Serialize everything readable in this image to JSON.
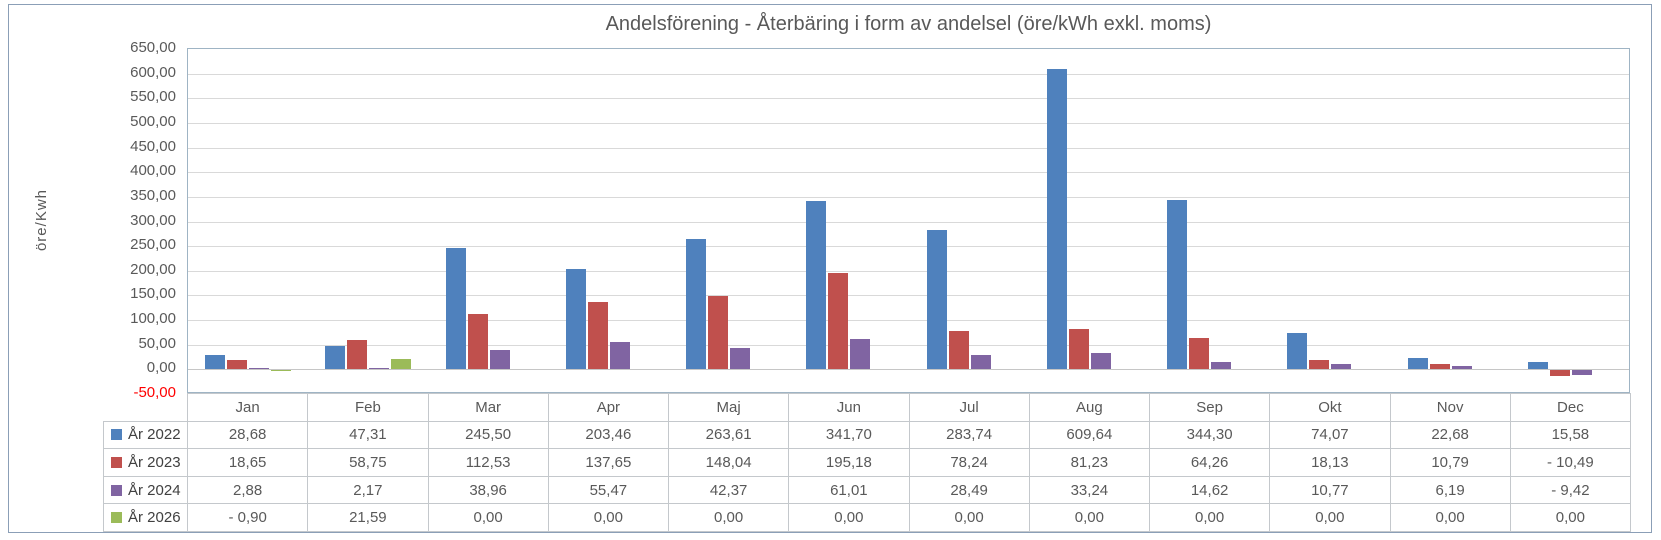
{
  "chart_data": {
    "type": "bar",
    "title": "Andelsförening - Återbäring i form av andelsel (öre/kWh exkl. moms)",
    "ylabel": "öre/Kwh",
    "xlabel": "",
    "ylim": [
      -50,
      650
    ],
    "ytick_step": 50,
    "yticks": [
      "650,00",
      "600,00",
      "550,00",
      "500,00",
      "450,00",
      "400,00",
      "350,00",
      "300,00",
      "250,00",
      "200,00",
      "150,00",
      "100,00",
      "50,00",
      "0,00",
      "-50,00"
    ],
    "negative_tick_color": "#ff0000",
    "grid": true,
    "legend_position": "table-left",
    "categories": [
      "Jan",
      "Feb",
      "Mar",
      "Apr",
      "Maj",
      "Jun",
      "Jul",
      "Aug",
      "Sep",
      "Okt",
      "Nov",
      "Dec"
    ],
    "series": [
      {
        "name": "År 2022",
        "color": "#4F81BD",
        "values": [
          28.68,
          47.31,
          245.5,
          203.46,
          263.61,
          341.7,
          283.74,
          609.64,
          344.3,
          74.07,
          22.68,
          15.58
        ],
        "display": [
          "28,68",
          "47,31",
          "245,50",
          "203,46",
          "263,61",
          "341,70",
          "283,74",
          "609,64",
          "344,30",
          "74,07",
          "22,68",
          "15,58"
        ]
      },
      {
        "name": "År 2023",
        "color": "#C0504D",
        "values": [
          18.65,
          58.75,
          112.53,
          137.65,
          148.04,
          195.18,
          78.24,
          81.23,
          64.26,
          18.13,
          10.79,
          -10.49
        ],
        "display": [
          "18,65",
          "58,75",
          "112,53",
          "137,65",
          "148,04",
          "195,18",
          "78,24",
          "81,23",
          "64,26",
          "18,13",
          "10,79",
          "- 10,49"
        ]
      },
      {
        "name": "År 2024",
        "color": "#8064A2",
        "values": [
          2.88,
          2.17,
          38.96,
          55.47,
          42.37,
          61.01,
          28.49,
          33.24,
          14.62,
          10.77,
          6.19,
          -9.42
        ],
        "display": [
          "2,88",
          "2,17",
          "38,96",
          "55,47",
          "42,37",
          "61,01",
          "28,49",
          "33,24",
          "14,62",
          "10,77",
          "6,19",
          "- 9,42"
        ]
      },
      {
        "name": "År 2026",
        "color": "#9BBB59",
        "values": [
          -0.9,
          21.59,
          0,
          0,
          0,
          0,
          0,
          0,
          0,
          0,
          0,
          0
        ],
        "display": [
          "- 0,90",
          "21,59",
          "0,00",
          "0,00",
          "0,00",
          "0,00",
          "0,00",
          "0,00",
          "0,00",
          "0,00",
          "0,00",
          "0,00"
        ]
      }
    ]
  }
}
